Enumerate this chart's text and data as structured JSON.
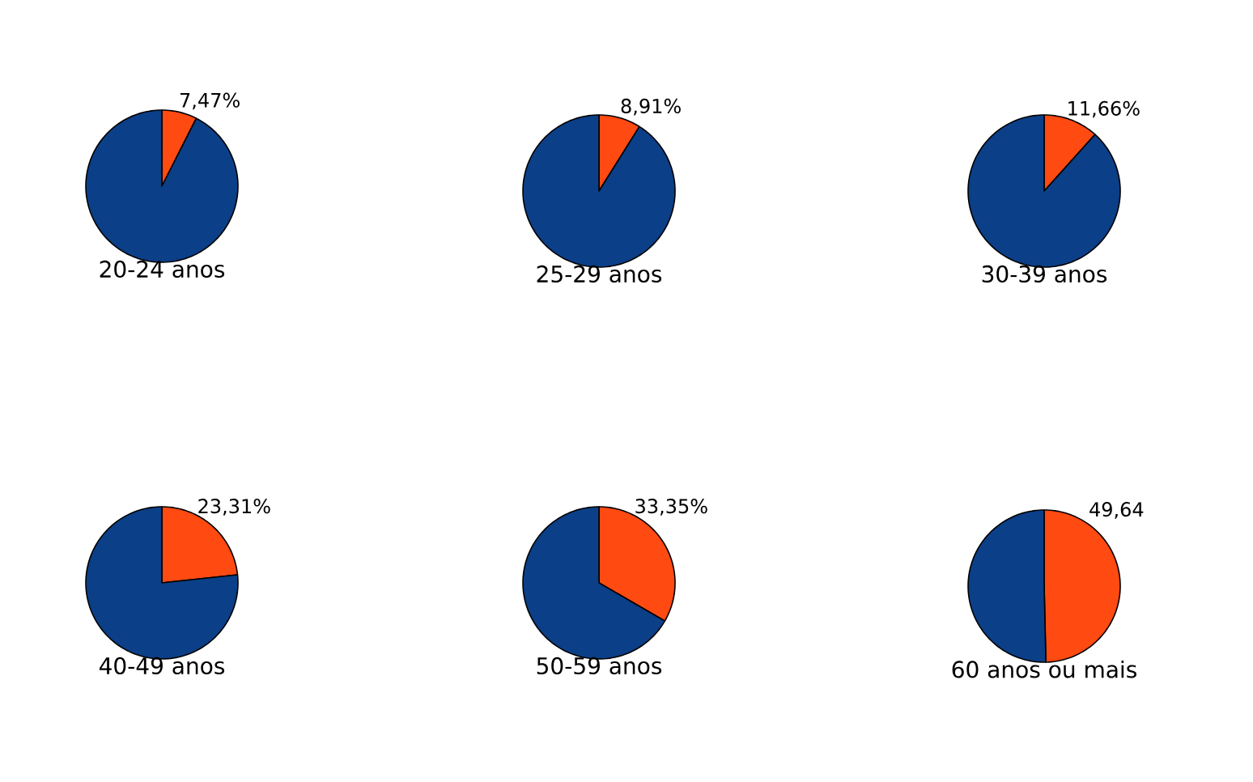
{
  "chart_data": [
    {
      "type": "pie",
      "title": "20-24 anos",
      "categories": [
        null,
        null
      ],
      "values": [
        7.47,
        92.53
      ],
      "colors": [
        "#ff4a12",
        "#0b3f87"
      ],
      "value_labels": [
        "7,47%",
        null
      ]
    },
    {
      "type": "pie",
      "title": "25-29 anos",
      "categories": [
        null,
        null
      ],
      "values": [
        8.91,
        91.09
      ],
      "colors": [
        "#ff4a12",
        "#0b3f87"
      ],
      "value_labels": [
        "8,91%",
        null
      ]
    },
    {
      "type": "pie",
      "title": "30-39 anos",
      "categories": [
        null,
        null
      ],
      "values": [
        11.66,
        88.34
      ],
      "colors": [
        "#ff4a12",
        "#0b3f87"
      ],
      "value_labels": [
        "11,66%",
        null
      ]
    },
    {
      "type": "pie",
      "title": "40-49 anos",
      "categories": [
        null,
        null
      ],
      "values": [
        23.31,
        76.69
      ],
      "colors": [
        "#ff4a12",
        "#0b3f87"
      ],
      "value_labels": [
        "23,31%",
        null
      ]
    },
    {
      "type": "pie",
      "title": "50-59 anos",
      "categories": [
        null,
        null
      ],
      "values": [
        33.35,
        66.65
      ],
      "colors": [
        "#ff4a12",
        "#0b3f87"
      ],
      "value_labels": [
        "33,35%",
        null
      ]
    },
    {
      "type": "pie",
      "title": "60 anos ou mais",
      "categories": [
        null,
        null
      ],
      "values": [
        49.64,
        50.36
      ],
      "colors": [
        "#ff4a12",
        "#0b3f87"
      ],
      "value_labels": [
        "49,64",
        null
      ]
    }
  ]
}
